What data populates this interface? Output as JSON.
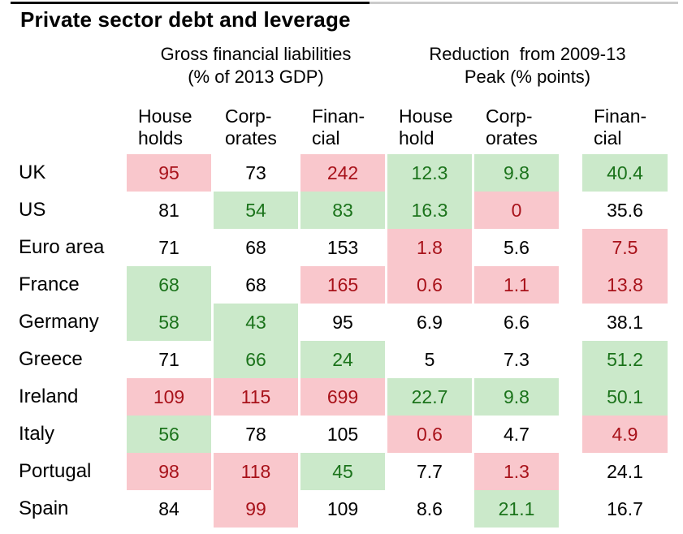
{
  "title": "Private sector debt and leverage",
  "colors": {
    "highlight_red_bg": "#f9c7cc",
    "highlight_red_text": "#a8121a",
    "highlight_green_bg": "#cbe9ca",
    "highlight_green_text": "#1b731b"
  },
  "chart_data": {
    "type": "table",
    "title": "Private sector debt and leverage",
    "column_groups": [
      {
        "line1": "Gross financial liabilities",
        "line2": "(% of 2013 GDP)"
      },
      {
        "line1": "Reduction  from 2009-13",
        "line2": "Peak (% points)"
      }
    ],
    "columns": [
      {
        "line1": "House",
        "line2": "holds",
        "group": 0
      },
      {
        "line1": "Corp-",
        "line2": "orates",
        "group": 0
      },
      {
        "line1": "Finan-",
        "line2": "cial",
        "group": 0
      },
      {
        "line1": "House",
        "line2": "hold",
        "group": 1
      },
      {
        "line1": "Corp-",
        "line2": "orates",
        "group": 1
      },
      {
        "line1": "Finan-",
        "line2": "cial",
        "group": 1
      }
    ],
    "highlight_legend": {
      "red": "pink cell with dark red value",
      "green": "green cell with dark green value",
      "plain": "white cell with black value"
    },
    "rows": [
      {
        "country": "UK",
        "cells": [
          {
            "value": 95,
            "state": "red"
          },
          {
            "value": 73,
            "state": "plain"
          },
          {
            "value": 242,
            "state": "red"
          },
          {
            "value": 12.3,
            "state": "green"
          },
          {
            "value": 9.8,
            "state": "green"
          },
          {
            "value": 40.4,
            "state": "green"
          }
        ]
      },
      {
        "country": "US",
        "cells": [
          {
            "value": 81,
            "state": "plain"
          },
          {
            "value": 54,
            "state": "green"
          },
          {
            "value": 83,
            "state": "green"
          },
          {
            "value": 16.3,
            "state": "green"
          },
          {
            "value": 0,
            "state": "red"
          },
          {
            "value": 35.6,
            "state": "plain"
          }
        ]
      },
      {
        "country": "Euro area",
        "cells": [
          {
            "value": 71,
            "state": "plain"
          },
          {
            "value": 68,
            "state": "plain"
          },
          {
            "value": 153,
            "state": "plain"
          },
          {
            "value": 1.8,
            "state": "red"
          },
          {
            "value": 5.6,
            "state": "plain"
          },
          {
            "value": 7.5,
            "state": "red"
          }
        ]
      },
      {
        "country": "France",
        "cells": [
          {
            "value": 68,
            "state": "green"
          },
          {
            "value": 68,
            "state": "plain"
          },
          {
            "value": 165,
            "state": "red"
          },
          {
            "value": 0.6,
            "state": "red"
          },
          {
            "value": 1.1,
            "state": "red"
          },
          {
            "value": 13.8,
            "state": "red"
          }
        ]
      },
      {
        "country": "Germany",
        "cells": [
          {
            "value": 58,
            "state": "green"
          },
          {
            "value": 43,
            "state": "green"
          },
          {
            "value": 95,
            "state": "plain"
          },
          {
            "value": 6.9,
            "state": "plain"
          },
          {
            "value": 6.6,
            "state": "plain"
          },
          {
            "value": 38.1,
            "state": "plain"
          }
        ]
      },
      {
        "country": "Greece",
        "cells": [
          {
            "value": 71,
            "state": "plain"
          },
          {
            "value": 66,
            "state": "green"
          },
          {
            "value": 24,
            "state": "green"
          },
          {
            "value": 5,
            "state": "plain"
          },
          {
            "value": 7.3,
            "state": "plain"
          },
          {
            "value": 51.2,
            "state": "green"
          }
        ]
      },
      {
        "country": "Ireland",
        "cells": [
          {
            "value": 109,
            "state": "red"
          },
          {
            "value": 115,
            "state": "red"
          },
          {
            "value": 699,
            "state": "red"
          },
          {
            "value": 22.7,
            "state": "green"
          },
          {
            "value": 9.8,
            "state": "green"
          },
          {
            "value": 50.1,
            "state": "green"
          }
        ]
      },
      {
        "country": "Italy",
        "cells": [
          {
            "value": 56,
            "state": "green"
          },
          {
            "value": 78,
            "state": "plain"
          },
          {
            "value": 105,
            "state": "plain"
          },
          {
            "value": 0.6,
            "state": "red"
          },
          {
            "value": 4.7,
            "state": "plain"
          },
          {
            "value": 4.9,
            "state": "red"
          }
        ]
      },
      {
        "country": "Portugal",
        "cells": [
          {
            "value": 98,
            "state": "red"
          },
          {
            "value": 118,
            "state": "red"
          },
          {
            "value": 45,
            "state": "green"
          },
          {
            "value": 7.7,
            "state": "plain"
          },
          {
            "value": 1.3,
            "state": "red"
          },
          {
            "value": 24.1,
            "state": "plain"
          }
        ]
      },
      {
        "country": "Spain",
        "cells": [
          {
            "value": 84,
            "state": "plain"
          },
          {
            "value": 99,
            "state": "red"
          },
          {
            "value": 109,
            "state": "plain"
          },
          {
            "value": 8.6,
            "state": "plain"
          },
          {
            "value": 21.1,
            "state": "green"
          },
          {
            "value": 16.7,
            "state": "plain"
          }
        ]
      }
    ]
  }
}
